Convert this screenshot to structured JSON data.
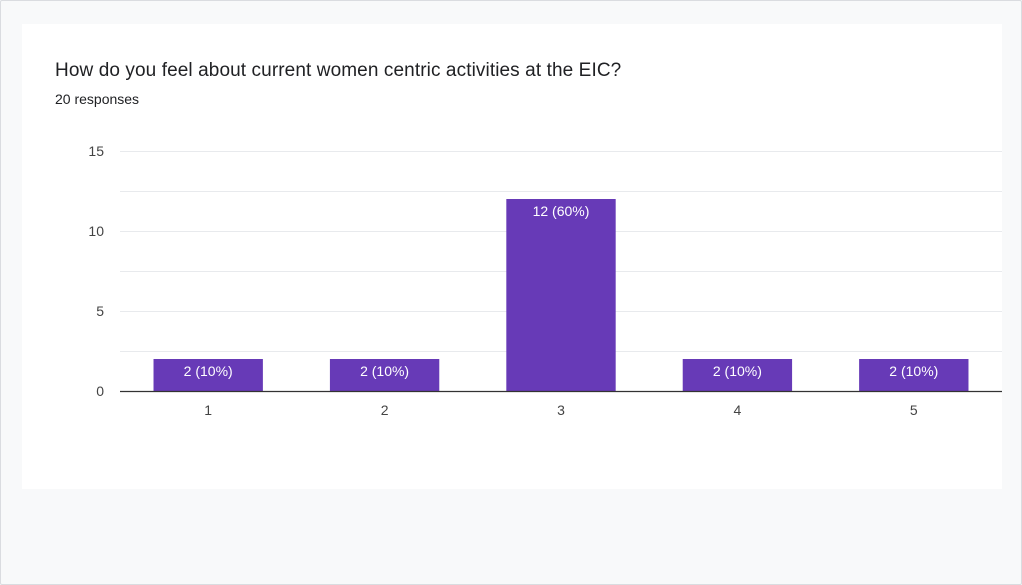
{
  "colors": {
    "bar": "#673ab7",
    "grid": "#e8eaed",
    "axis": "#333333"
  },
  "chart_data": {
    "type": "bar",
    "title": "How do you feel about current women centric activities at the EIC?",
    "subtitle": "20 responses",
    "categories": [
      "1",
      "2",
      "3",
      "4",
      "5"
    ],
    "values": [
      2,
      2,
      12,
      2,
      2
    ],
    "data_labels": [
      "2 (10%)",
      "2 (10%)",
      "12 (60%)",
      "2 (10%)",
      "2 (10%)"
    ],
    "ylim": [
      0,
      15
    ],
    "yticks": [
      0,
      5,
      10,
      15
    ],
    "grid": true,
    "xlabel": "",
    "ylabel": ""
  }
}
